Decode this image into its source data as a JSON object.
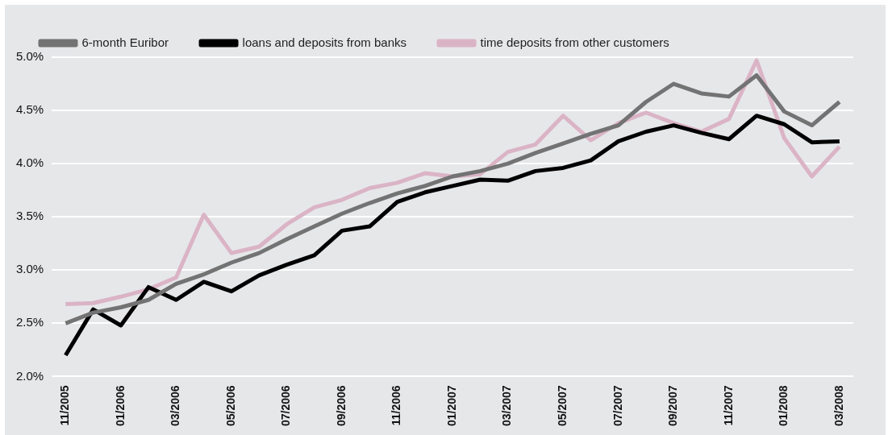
{
  "chart_data": {
    "type": "line",
    "categories": [
      "11/2005",
      null,
      "01/2006",
      null,
      "03/2006",
      null,
      "05/2006",
      null,
      "07/2006",
      null,
      "09/2006",
      null,
      "11/2006",
      null,
      "01/2007",
      null,
      "03/2007",
      null,
      "05/2007",
      null,
      "07/2007",
      null,
      "09/2007",
      null,
      "11/2007",
      null,
      "01/2008",
      null,
      "03/2008"
    ],
    "series": [
      {
        "name": "6-month Euribor",
        "color": "#737373",
        "values": [
          2.5,
          2.6,
          2.65,
          2.72,
          2.87,
          2.96,
          3.07,
          3.16,
          3.29,
          3.41,
          3.53,
          3.63,
          3.72,
          3.79,
          3.88,
          3.93,
          4.0,
          4.1,
          4.19,
          4.28,
          4.36,
          4.58,
          4.75,
          4.66,
          4.63,
          4.83,
          4.49,
          4.36,
          4.58
        ]
      },
      {
        "name": "loans and deposits from banks",
        "color": "#000000",
        "values": [
          2.2,
          2.63,
          2.48,
          2.84,
          2.72,
          2.89,
          2.8,
          2.95,
          3.05,
          3.14,
          3.37,
          3.41,
          3.64,
          3.73,
          3.79,
          3.85,
          3.84,
          3.93,
          3.96,
          4.03,
          4.21,
          4.3,
          4.36,
          4.29,
          4.23,
          4.45,
          4.37,
          4.2,
          4.21
        ]
      },
      {
        "name": "time deposits from other customers",
        "color": "#dab4c5",
        "values": [
          2.68,
          2.69,
          2.75,
          2.82,
          2.93,
          3.52,
          3.16,
          3.22,
          3.43,
          3.59,
          3.66,
          3.77,
          3.82,
          3.91,
          3.88,
          3.9,
          4.11,
          4.18,
          4.45,
          4.22,
          4.38,
          4.48,
          4.38,
          4.3,
          4.42,
          4.97,
          4.24,
          3.88,
          4.16
        ]
      }
    ],
    "ylim": [
      2.0,
      5.0
    ],
    "yticks": [
      {
        "value": 2.0,
        "label": "2.0%"
      },
      {
        "value": 2.5,
        "label": "2.5%"
      },
      {
        "value": 3.0,
        "label": "3.0%"
      },
      {
        "value": 3.5,
        "label": "3.5%"
      },
      {
        "value": 4.0,
        "label": "4.0%"
      },
      {
        "value": 4.5,
        "label": "4.5%"
      },
      {
        "value": 5.0,
        "label": "5.0%"
      }
    ],
    "grid": "y",
    "legend": "top left",
    "marker": "none",
    "line_style": "solid"
  }
}
